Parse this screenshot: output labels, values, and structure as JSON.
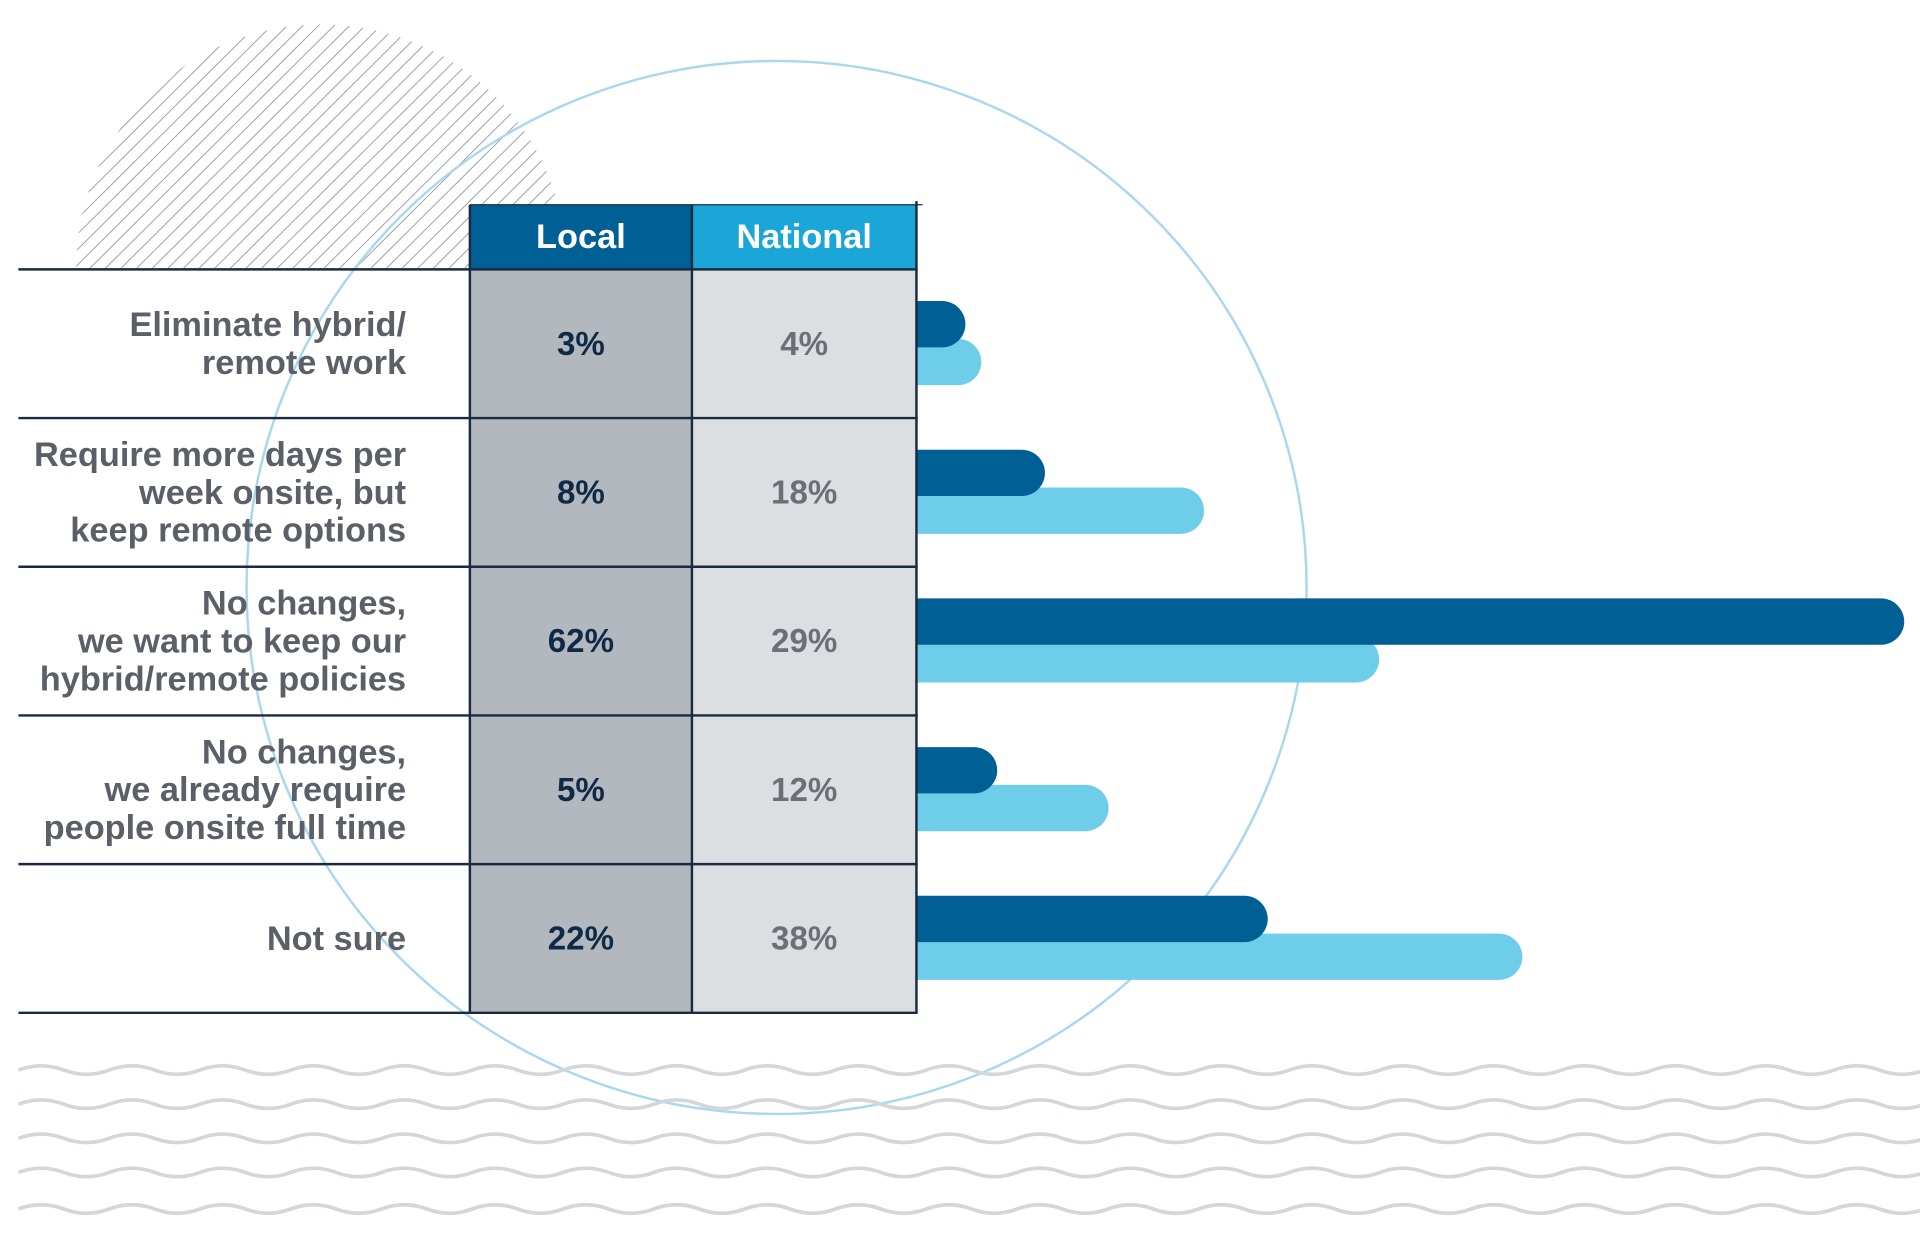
{
  "chart_data": {
    "type": "bar",
    "categories": [
      [
        "Eliminate hybrid/",
        "remote work"
      ],
      [
        "Require more days per",
        "week onsite, but",
        "keep remote options"
      ],
      [
        "No changes,",
        "we want to keep our",
        "hybrid/remote policies"
      ],
      [
        "No changes,",
        "we already require",
        "people onsite full time"
      ],
      [
        "Not sure"
      ]
    ],
    "series": [
      {
        "name": "Local",
        "color": "#006096",
        "values": [
          3,
          8,
          62,
          5,
          22
        ],
        "value_labels": [
          "3%",
          "8%",
          "62%",
          "5%",
          "22%"
        ]
      },
      {
        "name": "National",
        "color": "#6ecde9",
        "values": [
          4,
          18,
          29,
          12,
          38
        ],
        "value_labels": [
          "4%",
          "18%",
          "29%",
          "12%",
          "38%"
        ]
      }
    ]
  }
}
